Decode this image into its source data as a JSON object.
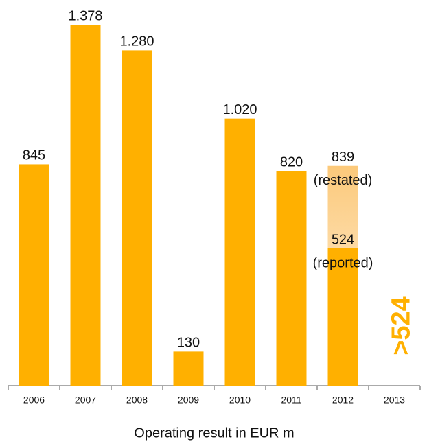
{
  "chart_data": {
    "type": "bar",
    "x_label": "Operating result in EUR m",
    "categories": [
      "2006",
      "2007",
      "2008",
      "2009",
      "2010",
      "2011",
      "2012",
      "2013"
    ],
    "series": [
      {
        "name": "(reported)",
        "color": "#ffb000",
        "values": [
          845,
          1378,
          1280,
          130,
          1020,
          820,
          524,
          null
        ],
        "value_labels": [
          "845",
          "1.378",
          "1.280",
          "130",
          "1.020",
          "820",
          "524",
          null
        ]
      },
      {
        "name": "(restated)",
        "color": "#fcc97a",
        "values": [
          null,
          null,
          null,
          null,
          null,
          null,
          839,
          null
        ]
      }
    ],
    "annotation": ">524",
    "annotation_color": "#ffb000"
  }
}
